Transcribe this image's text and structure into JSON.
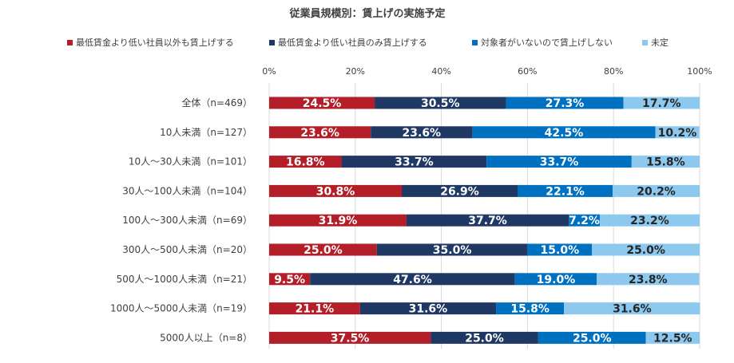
{
  "chart_data": {
    "type": "bar",
    "orientation": "horizontal",
    "stacked": true,
    "title": "従業員規模別：賃上げの実施予定",
    "xlim": [
      0,
      100
    ],
    "xticks": [
      "0%",
      "20%",
      "40%",
      "60%",
      "80%",
      "100%"
    ],
    "legend_position": "top",
    "categories": [
      "全体（n=469）",
      "10人未満（n=127）",
      "10人～30人未満（n=101）",
      "30人～100人未満（n=104）",
      "100人～300人未満（n=69）",
      "300人～500人未満（n=20）",
      "500人～1000人未満（n=21）",
      "1000人～5000人未満（n=19）",
      "5000人以上（n=8）"
    ],
    "series": [
      {
        "name": "最低賃金より低い社員以外も賃上げする",
        "color": "#B41E28",
        "label_color": "#ffffff",
        "values": [
          24.5,
          23.6,
          16.8,
          30.8,
          31.9,
          25.0,
          9.5,
          21.1,
          37.5
        ],
        "labels": [
          "24.5%",
          "23.6%",
          "16.8%",
          "30.8%",
          "31.9%",
          "25.0%",
          "9.5%",
          "21.1%",
          "37.5%"
        ]
      },
      {
        "name": "最低賃金より低い社員のみ賃上げする",
        "color": "#203864",
        "label_color": "#ffffff",
        "values": [
          30.5,
          23.6,
          33.7,
          26.9,
          37.7,
          35.0,
          47.6,
          31.6,
          25.0
        ],
        "labels": [
          "30.5%",
          "23.6%",
          "33.7%",
          "26.9%",
          "37.7%",
          "35.0%",
          "47.6%",
          "31.6%",
          "25.0%"
        ]
      },
      {
        "name": "対象者がいないので賃上げしない",
        "color": "#0070C0",
        "label_color": "#ffffff",
        "values": [
          27.3,
          42.5,
          33.7,
          22.1,
          7.2,
          15.0,
          19.0,
          15.8,
          25.0
        ],
        "labels": [
          "27.3%",
          "42.5%",
          "33.7%",
          "22.1%",
          "7.2%",
          "15.0%",
          "19.0%",
          "15.8%",
          "25.0%"
        ]
      },
      {
        "name": "未定",
        "color": "#8DC9EE",
        "label_color": "#262626",
        "values": [
          17.7,
          10.2,
          15.8,
          20.2,
          23.2,
          25.0,
          23.8,
          31.6,
          12.5
        ],
        "labels": [
          "17.7%",
          "10.2%",
          "15.8%",
          "20.2%",
          "23.2%",
          "25.0%",
          "23.8%",
          "31.6%",
          "12.5%"
        ]
      }
    ]
  }
}
